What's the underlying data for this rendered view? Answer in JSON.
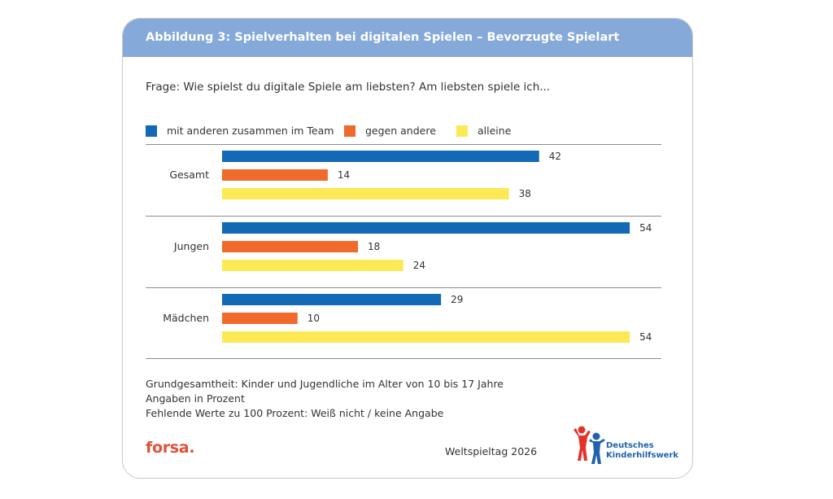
{
  "header": {
    "title": "Abbildung 3: Spielverhalten bei digitalen Spielen – Bevorzugte Spielart",
    "question": "Frage: Wie spielst du digitale Spiele am liebsten? Am liebsten spiele ich..."
  },
  "colors": {
    "header_bg": "#85a9d9",
    "team": "#1369b6",
    "against": "#f06a2c",
    "alone": "#fbe955",
    "rule": "#8c8c8c"
  },
  "chart_data": {
    "type": "bar",
    "orientation": "horizontal",
    "title": "",
    "xlabel": "",
    "ylabel": "",
    "xlim": [
      0,
      54
    ],
    "grid": false,
    "legend_placement": "top",
    "categories": [
      "Gesamt",
      "Jungen",
      "Mädchen"
    ],
    "series": [
      {
        "name": "mit anderen zusammen im Team",
        "color": "#1369b6",
        "values": [
          42,
          54,
          29
        ]
      },
      {
        "name": "gegen andere",
        "color": "#f06a2c",
        "values": [
          14,
          18,
          10
        ]
      },
      {
        "name": "alleine",
        "color": "#fbe955",
        "values": [
          38,
          24,
          54
        ]
      }
    ]
  },
  "footnotes": {
    "line1": "Grundgesamtheit: Kinder und Jugendliche im Alter von 10 bis 17 Jahre",
    "line2": "Angaben in Prozent",
    "line3": "Fehlende Werte zu 100 Prozent: Weiß nicht / keine Angabe"
  },
  "footer": {
    "source_logo": "forsa.",
    "event": "Weltspieltag 2026",
    "org_logo_line1": "Deutsches",
    "org_logo_line2": "Kinderhilfswerk",
    "org_logo_icon": "two-children-figures-icon"
  }
}
